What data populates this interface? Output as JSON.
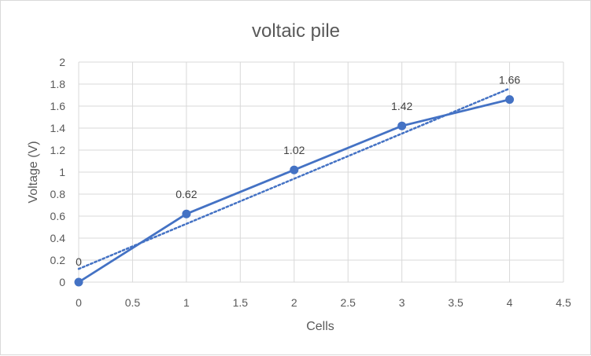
{
  "chart_data": {
    "type": "scatter",
    "title": "voltaic  pile",
    "xlabel": "Cells",
    "ylabel": "Voltage (V)",
    "xlim": [
      0,
      4.5
    ],
    "ylim": [
      0,
      2
    ],
    "x_ticks": [
      "0",
      "0.5",
      "1",
      "1.5",
      "2",
      "2.5",
      "3",
      "3.5",
      "4",
      "4.5"
    ],
    "y_ticks": [
      "0",
      "0.2",
      "0.4",
      "0.6",
      "0.8",
      "1",
      "1.2",
      "1.4",
      "1.6",
      "1.8",
      "2"
    ],
    "grid": true,
    "legend": "none",
    "series": [
      {
        "x": [
          0,
          1,
          2,
          3,
          4
        ],
        "y": [
          0,
          0.62,
          1.02,
          1.42,
          1.66
        ],
        "data_labels": [
          "0",
          "0.62",
          "1.02",
          "1.42",
          "1.66"
        ],
        "style": "line with markers",
        "color": "#4472c4",
        "trendline": {
          "type": "linear",
          "style": "dotted",
          "from": [
            0,
            0.12
          ],
          "to": [
            4,
            1.76
          ]
        }
      }
    ]
  }
}
